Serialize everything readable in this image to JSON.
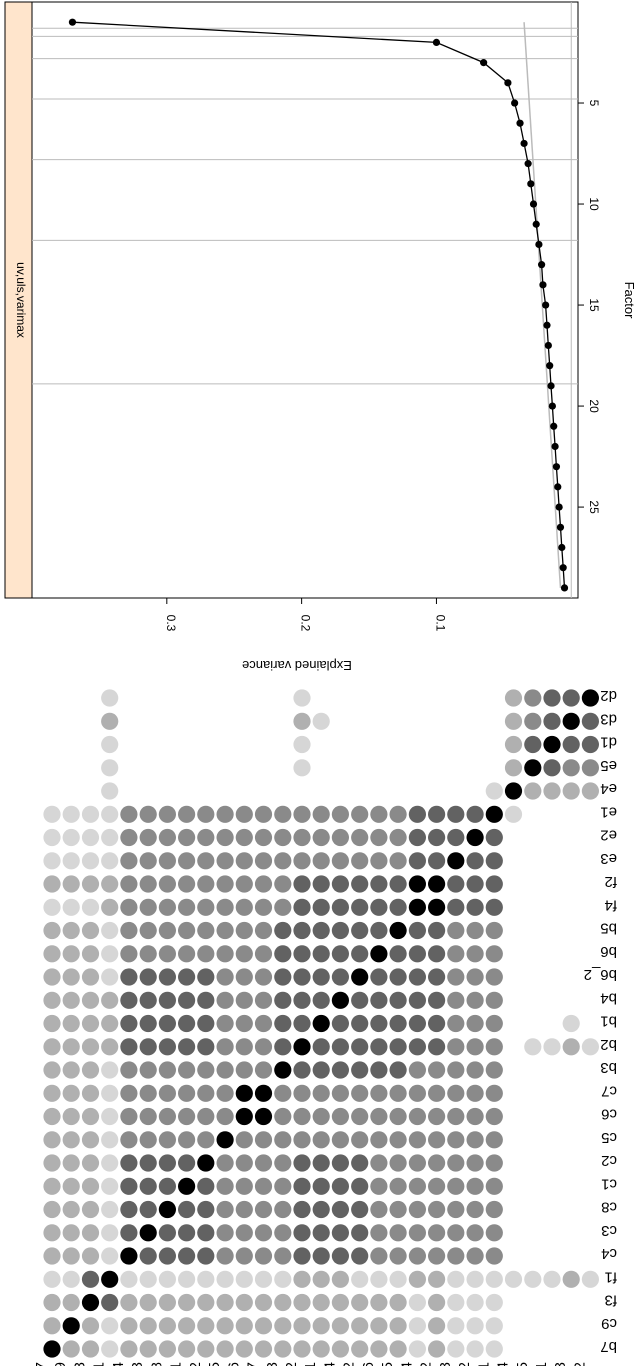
{
  "colors": {
    "strip_fill": "#ffe5cc",
    "line": "#000000",
    "ref_line": "#bbbbbb",
    "grid": "#bbbbbb",
    "dot_scale": [
      "#ffffff",
      "#d6d6d6",
      "#b0b0b0",
      "#8a8a8a",
      "#626262",
      "#000000"
    ]
  },
  "chart_data": [
    {
      "type": "line",
      "panel_label": "uv,uls,varimax",
      "xlabel": "Factor",
      "ylabel": "Explained variance",
      "xlim": [
        0,
        29.5
      ],
      "ylim": [
        -0.005,
        0.4
      ],
      "x_ticks": [
        5,
        10,
        15,
        20,
        25
      ],
      "y_ticks": [
        0.1,
        0.2,
        0.3
      ],
      "vertical_lines": [
        1.3,
        1.7,
        2.8,
        4.8,
        7.8,
        11.8,
        18.9
      ],
      "x": [
        1,
        2,
        3,
        4,
        5,
        6,
        7,
        8,
        9,
        10,
        11,
        12,
        13,
        14,
        15,
        16,
        17,
        18,
        19,
        20,
        21,
        22,
        23,
        24,
        25,
        26,
        27,
        28,
        29
      ],
      "series": [
        {
          "values": [
            0.37,
            0.1,
            0.065,
            0.047,
            0.042,
            0.038,
            0.035,
            0.032,
            0.03,
            0.028,
            0.026,
            0.024,
            0.022,
            0.021,
            0.019,
            0.018,
            0.017,
            0.016,
            0.015,
            0.014,
            0.013,
            0.012,
            0.011,
            0.01,
            0.009,
            0.008,
            0.007,
            0.006,
            0.005
          ]
        }
      ],
      "reference_line": {
        "x": [
          1,
          29
        ],
        "values": [
          0.035,
          0.008
        ]
      }
    },
    {
      "type": "heatmap",
      "labels": [
        "b7",
        "c9",
        "f3",
        "f1",
        "c4",
        "c3",
        "c8",
        "c1",
        "c2",
        "c5",
        "c6",
        "c7",
        "b3",
        "b2",
        "b1",
        "b4",
        "b6_2",
        "b6",
        "b5",
        "f4",
        "f2",
        "e3",
        "e2",
        "e1",
        "e4",
        "e5",
        "d1",
        "d3",
        "d2"
      ],
      "levels": [
        [
          5,
          2,
          2,
          1,
          2,
          2,
          2,
          2,
          2,
          2,
          2,
          2,
          2,
          2,
          2,
          2,
          2,
          2,
          2,
          1,
          2,
          1,
          1,
          1,
          0,
          0,
          0,
          0,
          0
        ],
        [
          2,
          5,
          2,
          1,
          2,
          2,
          2,
          2,
          2,
          2,
          2,
          2,
          2,
          2,
          2,
          2,
          2,
          2,
          2,
          1,
          2,
          1,
          1,
          1,
          0,
          0,
          0,
          0,
          0
        ],
        [
          2,
          2,
          5,
          4,
          2,
          2,
          2,
          2,
          2,
          2,
          2,
          2,
          2,
          2,
          2,
          2,
          2,
          2,
          2,
          1,
          2,
          1,
          1,
          1,
          0,
          0,
          0,
          0,
          0
        ],
        [
          1,
          1,
          4,
          5,
          1,
          1,
          1,
          1,
          1,
          1,
          1,
          1,
          1,
          2,
          2,
          2,
          1,
          1,
          1,
          2,
          2,
          1,
          1,
          1,
          1,
          1,
          1,
          2,
          1
        ],
        [
          2,
          2,
          2,
          1,
          5,
          4,
          4,
          4,
          4,
          3,
          3,
          3,
          3,
          4,
          4,
          4,
          4,
          3,
          3,
          3,
          3,
          3,
          3,
          3,
          0,
          0,
          0,
          0,
          0
        ],
        [
          2,
          2,
          2,
          1,
          4,
          5,
          4,
          4,
          4,
          3,
          3,
          3,
          3,
          4,
          4,
          4,
          4,
          3,
          3,
          3,
          3,
          3,
          3,
          3,
          0,
          0,
          0,
          0,
          0
        ],
        [
          2,
          2,
          2,
          1,
          4,
          4,
          5,
          4,
          4,
          3,
          3,
          3,
          3,
          4,
          4,
          4,
          4,
          3,
          3,
          3,
          3,
          3,
          3,
          3,
          0,
          0,
          0,
          0,
          0
        ],
        [
          2,
          2,
          2,
          1,
          4,
          4,
          4,
          5,
          4,
          3,
          3,
          3,
          3,
          4,
          4,
          4,
          4,
          3,
          3,
          3,
          3,
          3,
          3,
          3,
          0,
          0,
          0,
          0,
          0
        ],
        [
          2,
          2,
          2,
          1,
          4,
          4,
          4,
          4,
          5,
          3,
          3,
          3,
          3,
          4,
          4,
          4,
          4,
          3,
          3,
          3,
          3,
          3,
          3,
          3,
          0,
          0,
          0,
          0,
          0
        ],
        [
          2,
          2,
          2,
          1,
          3,
          3,
          3,
          3,
          3,
          5,
          3,
          3,
          3,
          3,
          3,
          3,
          3,
          3,
          3,
          3,
          3,
          3,
          3,
          3,
          0,
          0,
          0,
          0,
          0
        ],
        [
          2,
          2,
          2,
          1,
          3,
          3,
          3,
          3,
          3,
          3,
          5,
          5,
          3,
          3,
          3,
          3,
          3,
          3,
          3,
          3,
          3,
          3,
          3,
          3,
          0,
          0,
          0,
          0,
          0
        ],
        [
          2,
          2,
          2,
          1,
          3,
          3,
          3,
          3,
          3,
          3,
          5,
          5,
          3,
          3,
          3,
          3,
          3,
          3,
          3,
          3,
          3,
          3,
          3,
          3,
          0,
          0,
          0,
          0,
          0
        ],
        [
          2,
          2,
          2,
          1,
          3,
          3,
          3,
          3,
          3,
          3,
          3,
          3,
          5,
          4,
          4,
          4,
          4,
          4,
          4,
          3,
          3,
          3,
          3,
          3,
          0,
          0,
          0,
          0,
          0
        ],
        [
          2,
          2,
          2,
          2,
          4,
          4,
          4,
          4,
          4,
          3,
          3,
          3,
          4,
          5,
          4,
          4,
          4,
          4,
          4,
          4,
          4,
          3,
          3,
          3,
          0,
          1,
          1,
          2,
          1
        ],
        [
          2,
          2,
          2,
          2,
          4,
          4,
          4,
          4,
          4,
          3,
          3,
          3,
          4,
          4,
          5,
          4,
          4,
          4,
          4,
          4,
          4,
          3,
          3,
          3,
          0,
          0,
          0,
          1,
          0
        ],
        [
          2,
          2,
          2,
          2,
          4,
          4,
          4,
          4,
          4,
          3,
          3,
          3,
          4,
          4,
          4,
          5,
          4,
          4,
          4,
          4,
          4,
          3,
          3,
          3,
          0,
          0,
          0,
          0,
          0
        ],
        [
          2,
          2,
          2,
          1,
          4,
          4,
          4,
          4,
          4,
          3,
          3,
          3,
          4,
          4,
          4,
          4,
          5,
          4,
          4,
          4,
          4,
          3,
          3,
          3,
          0,
          0,
          0,
          0,
          0
        ],
        [
          2,
          2,
          2,
          1,
          3,
          3,
          3,
          3,
          3,
          3,
          3,
          3,
          4,
          4,
          4,
          4,
          4,
          5,
          4,
          4,
          4,
          3,
          3,
          3,
          0,
          0,
          0,
          0,
          0
        ],
        [
          2,
          2,
          2,
          1,
          3,
          3,
          3,
          3,
          3,
          3,
          3,
          3,
          4,
          4,
          4,
          4,
          4,
          4,
          5,
          4,
          4,
          3,
          3,
          3,
          0,
          0,
          0,
          0,
          0
        ],
        [
          1,
          1,
          1,
          2,
          3,
          3,
          3,
          3,
          3,
          3,
          3,
          3,
          3,
          4,
          4,
          4,
          4,
          4,
          4,
          5,
          5,
          4,
          4,
          4,
          0,
          0,
          0,
          0,
          0
        ],
        [
          2,
          2,
          2,
          2,
          3,
          3,
          3,
          3,
          3,
          3,
          3,
          3,
          3,
          4,
          4,
          4,
          4,
          4,
          4,
          5,
          5,
          4,
          4,
          4,
          0,
          0,
          0,
          0,
          0
        ],
        [
          1,
          1,
          1,
          1,
          3,
          3,
          3,
          3,
          3,
          3,
          3,
          3,
          3,
          3,
          3,
          3,
          3,
          3,
          3,
          4,
          4,
          5,
          4,
          4,
          0,
          0,
          0,
          0,
          0
        ],
        [
          1,
          1,
          1,
          1,
          3,
          3,
          3,
          3,
          3,
          3,
          3,
          3,
          3,
          3,
          3,
          3,
          3,
          3,
          3,
          4,
          4,
          4,
          5,
          4,
          0,
          0,
          0,
          0,
          0
        ],
        [
          1,
          1,
          1,
          1,
          3,
          3,
          3,
          3,
          3,
          3,
          3,
          3,
          3,
          3,
          3,
          3,
          3,
          3,
          3,
          4,
          4,
          4,
          4,
          5,
          1,
          0,
          0,
          0,
          0
        ],
        [
          0,
          0,
          0,
          1,
          0,
          0,
          0,
          0,
          0,
          0,
          0,
          0,
          0,
          0,
          0,
          0,
          0,
          0,
          0,
          0,
          0,
          0,
          0,
          1,
          5,
          2,
          2,
          2,
          2
        ],
        [
          0,
          0,
          0,
          1,
          0,
          0,
          0,
          0,
          0,
          0,
          0,
          0,
          0,
          1,
          0,
          0,
          0,
          0,
          0,
          0,
          0,
          0,
          0,
          0,
          2,
          5,
          4,
          3,
          3
        ],
        [
          0,
          0,
          0,
          1,
          0,
          0,
          0,
          0,
          0,
          0,
          0,
          0,
          0,
          1,
          0,
          0,
          0,
          0,
          0,
          0,
          0,
          0,
          0,
          0,
          2,
          4,
          5,
          4,
          4
        ],
        [
          0,
          0,
          0,
          2,
          0,
          0,
          0,
          0,
          0,
          0,
          0,
          0,
          0,
          2,
          1,
          0,
          0,
          0,
          0,
          0,
          0,
          0,
          0,
          0,
          2,
          3,
          4,
          5,
          4
        ],
        [
          0,
          0,
          0,
          1,
          0,
          0,
          0,
          0,
          0,
          0,
          0,
          0,
          0,
          1,
          0,
          0,
          0,
          0,
          0,
          0,
          0,
          0,
          0,
          0,
          2,
          3,
          4,
          4,
          5
        ]
      ]
    }
  ]
}
